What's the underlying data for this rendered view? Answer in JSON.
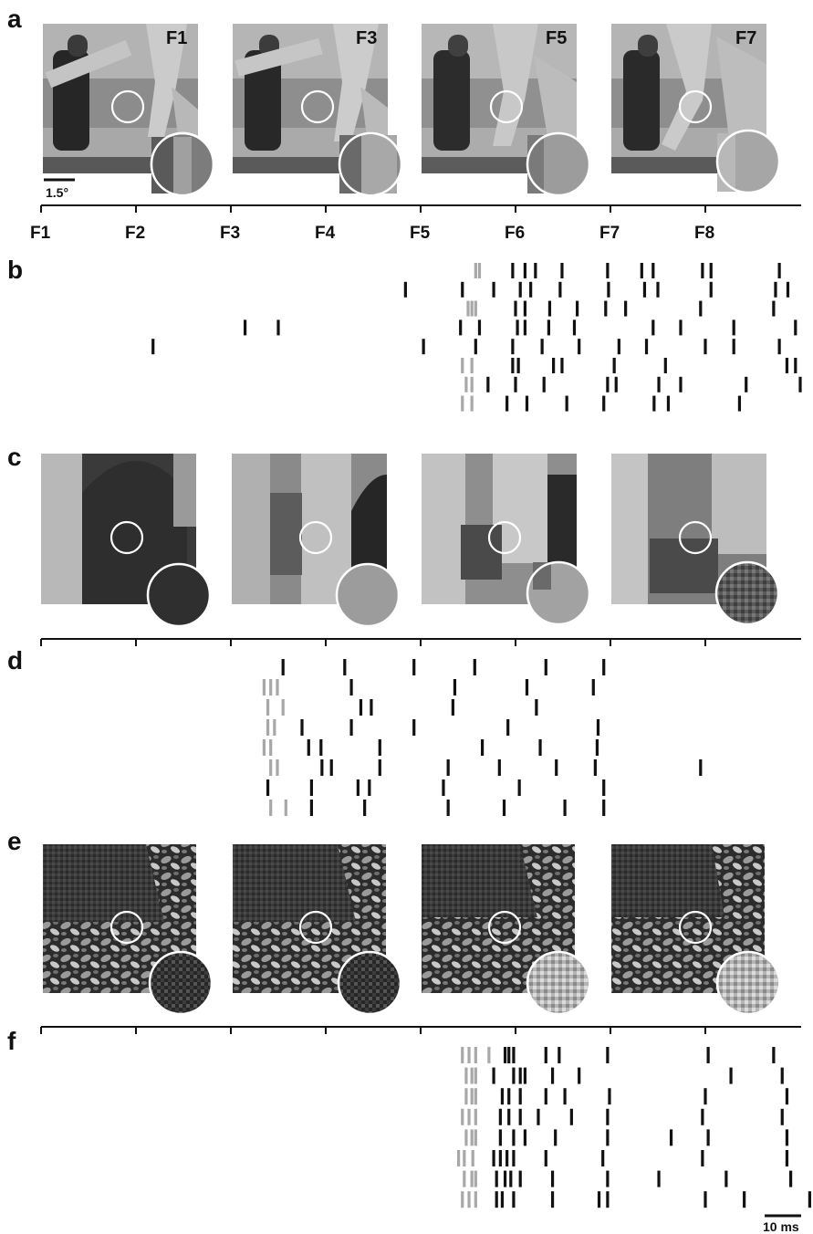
{
  "panels": {
    "a": "a",
    "b": "b",
    "c": "c",
    "d": "d",
    "e": "e",
    "f": "f"
  },
  "frame_labels_a": [
    "F1",
    "F3",
    "F5",
    "F7"
  ],
  "time_axis_labels": [
    "F1",
    "F2",
    "F3",
    "F4",
    "F5",
    "F6",
    "F7",
    "F8"
  ],
  "scale_bars": {
    "spatial": "1.5°",
    "temporal": "10 ms"
  },
  "colors": {
    "black_spike": "#111111",
    "grey_spike": "#a8a8a8"
  },
  "chart_data": [
    {
      "type": "scatter",
      "panel": "b",
      "x_unit": "frame",
      "xlim": [
        1,
        9
      ],
      "rows": [
        {
          "grey": [
            5.58,
            5.62
          ],
          "black": [
            5.97,
            6.1,
            6.21,
            6.49,
            6.97,
            7.33,
            7.45,
            7.97,
            8.06,
            8.78
          ]
        },
        {
          "black": [
            4.84,
            5.44,
            5.77,
            6.05,
            6.16,
            6.47,
            6.98,
            7.36,
            7.5,
            8.06,
            8.74,
            8.87
          ]
        },
        {
          "grey": [
            5.5,
            5.54,
            5.58
          ],
          "black": [
            6.0,
            6.1,
            6.36,
            6.65,
            6.95,
            7.16,
            7.95,
            8.72
          ]
        },
        {
          "black": [
            3.15,
            3.5,
            5.42,
            5.62,
            6.02,
            6.1,
            6.35,
            6.62,
            7.45,
            7.74,
            8.3,
            8.95
          ]
        },
        {
          "black": [
            2.18,
            5.03,
            5.58,
            5.97,
            6.28,
            6.67,
            7.09,
            7.38,
            8.0,
            8.3,
            8.78
          ]
        },
        {
          "grey": [
            5.44,
            5.54
          ],
          "black": [
            5.97,
            6.03,
            6.4,
            6.49,
            7.04,
            7.58,
            8.86,
            8.95
          ]
        },
        {
          "grey": [
            5.48,
            5.54
          ],
          "black": [
            5.71,
            6.0,
            6.3,
            6.97,
            7.06,
            7.51,
            7.74,
            8.43,
            9.0
          ]
        },
        {
          "grey": [
            5.44,
            5.54
          ],
          "black": [
            5.91,
            6.12,
            6.54,
            6.93,
            7.46,
            7.61,
            8.36,
            9.15
          ]
        }
      ]
    },
    {
      "type": "scatter",
      "panel": "d",
      "x_unit": "frame",
      "xlim": [
        1,
        9
      ],
      "rows": [
        {
          "black": [
            3.55,
            4.2,
            4.93,
            5.57,
            6.32,
            6.93
          ]
        },
        {
          "grey": [
            3.35,
            3.42,
            3.49
          ],
          "black": [
            4.27,
            5.36,
            6.12,
            6.82
          ]
        },
        {
          "grey": [
            3.39,
            3.55
          ],
          "black": [
            4.37,
            4.48,
            5.34,
            6.22
          ]
        },
        {
          "grey": [
            3.39,
            3.46
          ],
          "black": [
            3.75,
            4.27,
            4.93,
            5.92,
            6.87
          ]
        },
        {
          "grey": [
            3.35,
            3.42
          ],
          "black": [
            3.82,
            3.95,
            4.57,
            5.65,
            6.26,
            6.86
          ]
        },
        {
          "grey": [
            3.42,
            3.49
          ],
          "black": [
            3.96,
            4.06,
            4.57,
            5.29,
            5.83,
            6.43,
            6.84,
            7.95
          ]
        },
        {
          "black": [
            3.39,
            3.85,
            4.34,
            4.46,
            5.24,
            6.04,
            6.93
          ]
        },
        {
          "grey": [
            3.42,
            3.58
          ],
          "black": [
            3.85,
            4.41,
            5.29,
            5.88,
            6.52,
            6.93
          ]
        }
      ]
    },
    {
      "type": "scatter",
      "panel": "f",
      "x_unit": "frame",
      "xlim": [
        1,
        9
      ],
      "rows": [
        {
          "grey": [
            5.44,
            5.51,
            5.58,
            5.72
          ],
          "black": [
            5.89,
            5.93,
            5.98,
            6.32,
            6.46,
            6.97,
            8.03,
            8.72
          ]
        },
        {
          "grey": [
            5.48,
            5.54,
            5.58
          ],
          "black": [
            5.77,
            5.98,
            6.05,
            6.1,
            6.39,
            6.67,
            8.27,
            8.81
          ]
        },
        {
          "grey": [
            5.48,
            5.54,
            5.58
          ],
          "black": [
            5.86,
            5.93,
            6.05,
            6.32,
            6.52,
            6.99,
            8.0,
            8.86
          ]
        },
        {
          "grey": [
            5.44,
            5.51,
            5.58
          ],
          "black": [
            5.84,
            5.93,
            6.05,
            6.24,
            6.59,
            6.97,
            7.97,
            8.81
          ]
        },
        {
          "grey": [
            5.48,
            5.54,
            5.58
          ],
          "black": [
            5.84,
            5.98,
            6.1,
            6.42,
            6.97,
            7.64,
            8.03,
            8.86
          ]
        },
        {
          "grey": [
            5.4,
            5.46,
            5.55
          ],
          "black": [
            5.77,
            5.84,
            5.91,
            5.98,
            6.32,
            6.92,
            7.97,
            8.86
          ]
        },
        {
          "grey": [
            5.46,
            5.54,
            5.58
          ],
          "black": [
            5.8,
            5.89,
            5.95,
            6.05,
            6.39,
            6.97,
            7.51,
            8.22,
            8.9
          ]
        },
        {
          "grey": [
            5.44,
            5.51,
            5.58
          ],
          "black": [
            5.8,
            5.86,
            5.98,
            6.39,
            6.88,
            6.97,
            8.0,
            8.41,
            9.1
          ]
        }
      ]
    }
  ]
}
